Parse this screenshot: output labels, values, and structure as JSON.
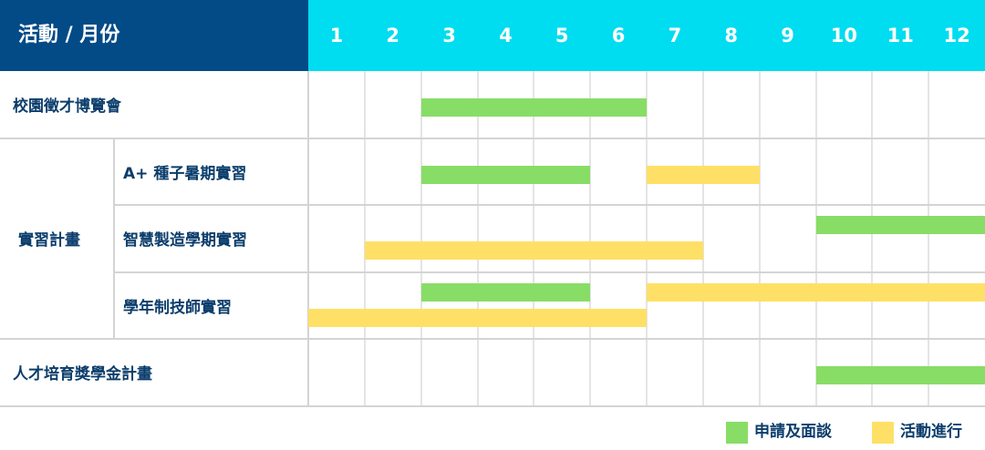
{
  "chart_data": {
    "type": "gantt",
    "header_label": "活動 / 月份",
    "months": [
      "1",
      "2",
      "3",
      "4",
      "5",
      "6",
      "7",
      "8",
      "9",
      "10",
      "11",
      "12"
    ],
    "colors": {
      "header_dark": "#024b87",
      "header_light": "#00dcf0",
      "application": "#88dd66",
      "activity": "#ffe066"
    },
    "legend": [
      {
        "key": "application",
        "label": "申請及面談"
      },
      {
        "key": "activity",
        "label": "活動進行"
      }
    ],
    "groups": [
      {
        "label": "校園徵才博覽會",
        "rows": [
          {
            "label": "",
            "bars": [
              {
                "type": "application",
                "start": 3,
                "end": 6,
                "lane": 0
              }
            ]
          }
        ]
      },
      {
        "label": "實習計畫",
        "rows": [
          {
            "label": "A+ 種子暑期實習",
            "bars": [
              {
                "type": "application",
                "start": 3,
                "end": 5,
                "lane": 0
              },
              {
                "type": "activity",
                "start": 7,
                "end": 8,
                "lane": 0
              }
            ]
          },
          {
            "label": "智慧製造學期實習",
            "bars": [
              {
                "type": "application",
                "start": 10,
                "end": 12,
                "lane": 0
              },
              {
                "type": "activity",
                "start": 2,
                "end": 7,
                "lane": 1
              }
            ]
          },
          {
            "label": "學年制技師實習",
            "bars": [
              {
                "type": "application",
                "start": 3,
                "end": 5,
                "lane": 0
              },
              {
                "type": "activity",
                "start": 7,
                "end": 12,
                "lane": 0
              },
              {
                "type": "activity",
                "start": 1,
                "end": 6,
                "lane": 1
              }
            ]
          }
        ]
      },
      {
        "label": "人才培育獎學金計畫",
        "rows": [
          {
            "label": "",
            "bars": [
              {
                "type": "application",
                "start": 10,
                "end": 12,
                "lane": 0
              }
            ]
          }
        ]
      }
    ]
  }
}
